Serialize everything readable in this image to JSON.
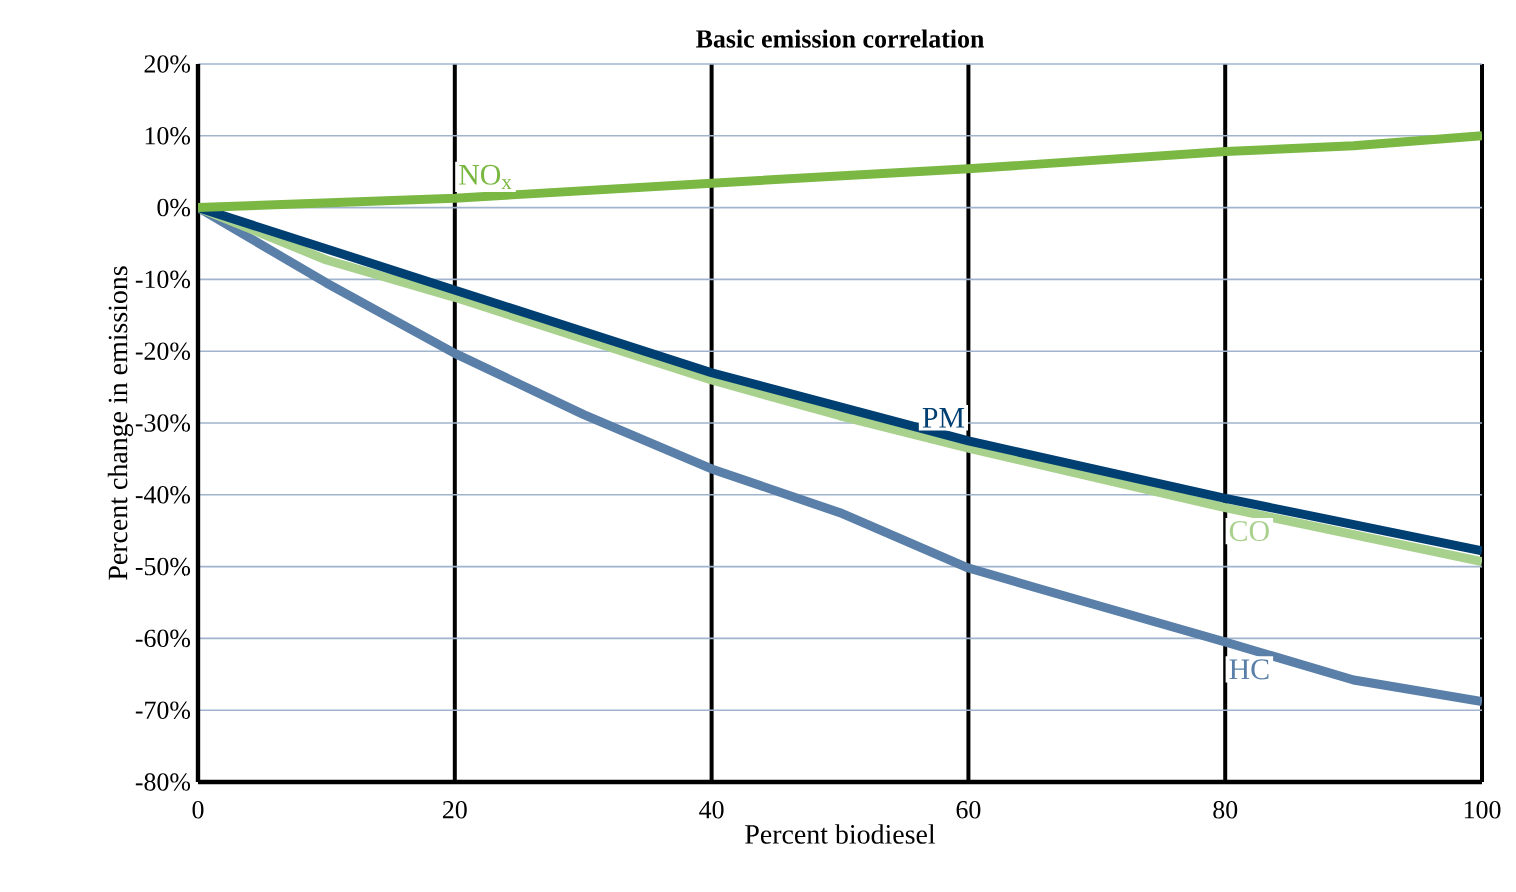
{
  "chart_data": {
    "type": "line",
    "title": "Basic emission correlation",
    "xlabel": "Percent biodiesel",
    "ylabel": "Percent change in emissions",
    "xlim": [
      0,
      100
    ],
    "xticks": [
      0,
      20,
      40,
      60,
      80,
      100
    ],
    "ylim": [
      -80,
      20
    ],
    "yticks": [
      {
        "value": -80,
        "label": "-80%"
      },
      {
        "value": -70,
        "label": "-70%"
      },
      {
        "value": -60,
        "label": "-60%"
      },
      {
        "value": -50,
        "label": "-50%"
      },
      {
        "value": -40,
        "label": "-40%"
      },
      {
        "value": -30,
        "label": "-30%"
      },
      {
        "value": -20,
        "label": "-20%"
      },
      {
        "value": -10,
        "label": "-10%"
      },
      {
        "value": 0,
        "label": "0%"
      },
      {
        "value": 10,
        "label": "10%"
      },
      {
        "value": 20,
        "label": "20%"
      }
    ],
    "grid": true,
    "legend": false,
    "marker": "none",
    "line_style": "solid",
    "series": [
      {
        "name": "HC",
        "color": "#5a7fa8",
        "x": [
          0,
          10,
          20,
          30,
          40,
          50,
          60,
          65,
          80,
          90,
          100
        ],
        "values": [
          0,
          -10.5,
          -20.3,
          -28.8,
          -36.4,
          -42.5,
          -50.2,
          -52.8,
          -60.5,
          -65.8,
          -68.8
        ]
      },
      {
        "name": "CO",
        "color": "#a9d18e",
        "x": [
          0,
          10,
          20,
          40,
          50,
          60,
          80,
          100
        ],
        "values": [
          0,
          -7.3,
          -12.5,
          -24,
          -29,
          -33.5,
          -41.8,
          -49.3
        ]
      },
      {
        "name": "PM",
        "color": "#003f72",
        "x": [
          0,
          20,
          40,
          60,
          80,
          100
        ],
        "values": [
          0,
          -11.5,
          -23,
          -32.5,
          -40.5,
          -47.8
        ]
      },
      {
        "name": "NO$_{x}$",
        "color": "#7ab843",
        "x": [
          0,
          20,
          40,
          60,
          80,
          90,
          100
        ],
        "values": [
          0,
          1.3,
          3.4,
          5.4,
          7.8,
          8.6,
          10
        ]
      }
    ]
  }
}
